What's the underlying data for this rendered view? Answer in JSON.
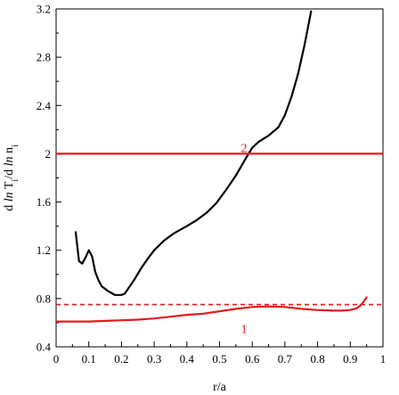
{
  "chart_data": {
    "type": "line",
    "title": "",
    "xlabel": "r/a",
    "ylabel": {
      "parts": [
        "d ",
        "ln",
        " T",
        "i",
        "/d ",
        "ln",
        " n",
        "i"
      ]
    },
    "xlim": [
      0,
      1
    ],
    "ylim": [
      0.4,
      3.2
    ],
    "xticks": [
      0,
      0.1,
      0.2,
      0.3,
      0.4,
      0.5,
      0.6,
      0.7,
      0.8,
      0.9,
      1
    ],
    "xtick_labels": [
      "0",
      "0.1",
      "0.2",
      "0.3",
      "0.4",
      "0.5",
      "0.6",
      "0.7",
      "0.8",
      "0.9",
      "1"
    ],
    "yticks": [
      0.4,
      0.8,
      1.2,
      1.6,
      2,
      2.4,
      2.8,
      3.2
    ],
    "ytick_labels": [
      "0.4",
      "0.8",
      "1.2",
      "1.6",
      "2",
      "2.4",
      "2.8",
      "3.2"
    ],
    "grid": false,
    "colors": {
      "black": "#000000",
      "red": "#e41a1c"
    },
    "series": [
      {
        "color": "#000000",
        "style": "solid",
        "x": [
          0.06,
          0.07,
          0.08,
          0.09,
          0.1,
          0.11,
          0.12,
          0.13,
          0.14,
          0.16,
          0.18,
          0.2,
          0.21,
          0.22,
          0.24,
          0.26,
          0.28,
          0.3,
          0.33,
          0.36,
          0.4,
          0.43,
          0.46,
          0.49,
          0.52,
          0.55,
          0.58,
          0.6,
          0.62,
          0.65,
          0.68,
          0.7,
          0.72,
          0.74,
          0.76,
          0.78
        ],
        "y": [
          1.35,
          1.11,
          1.09,
          1.14,
          1.2,
          1.15,
          1.02,
          0.95,
          0.9,
          0.86,
          0.83,
          0.83,
          0.84,
          0.88,
          0.96,
          1.05,
          1.13,
          1.2,
          1.28,
          1.34,
          1.4,
          1.45,
          1.51,
          1.59,
          1.7,
          1.82,
          1.96,
          2.05,
          2.1,
          2.15,
          2.22,
          2.32,
          2.47,
          2.66,
          2.9,
          3.18
        ]
      },
      {
        "label": "1",
        "color": "#e41a1c",
        "style": "solid",
        "x": [
          0,
          0.05,
          0.1,
          0.15,
          0.2,
          0.25,
          0.3,
          0.35,
          0.4,
          0.45,
          0.5,
          0.55,
          0.6,
          0.65,
          0.7,
          0.75,
          0.8,
          0.85,
          0.88,
          0.9,
          0.92,
          0.93,
          0.94,
          0.95
        ],
        "y": [
          0.61,
          0.61,
          0.61,
          0.615,
          0.62,
          0.625,
          0.635,
          0.65,
          0.665,
          0.675,
          0.695,
          0.715,
          0.73,
          0.735,
          0.73,
          0.715,
          0.705,
          0.7,
          0.7,
          0.705,
          0.72,
          0.74,
          0.77,
          0.81
        ]
      },
      {
        "label": "2",
        "color": "#e41a1c",
        "style": "solid",
        "x": [
          0,
          1
        ],
        "y": [
          2,
          2
        ]
      },
      {
        "color": "#e41a1c",
        "style": "dashed",
        "x": [
          0,
          1
        ],
        "y": [
          0.75,
          0.75
        ]
      }
    ],
    "annotations": [
      {
        "text": "2",
        "x": 0.575,
        "y": 2.05,
        "color": "#e41a1c"
      },
      {
        "text": "1",
        "x": 0.575,
        "y": 0.55,
        "color": "#e41a1c"
      }
    ]
  }
}
